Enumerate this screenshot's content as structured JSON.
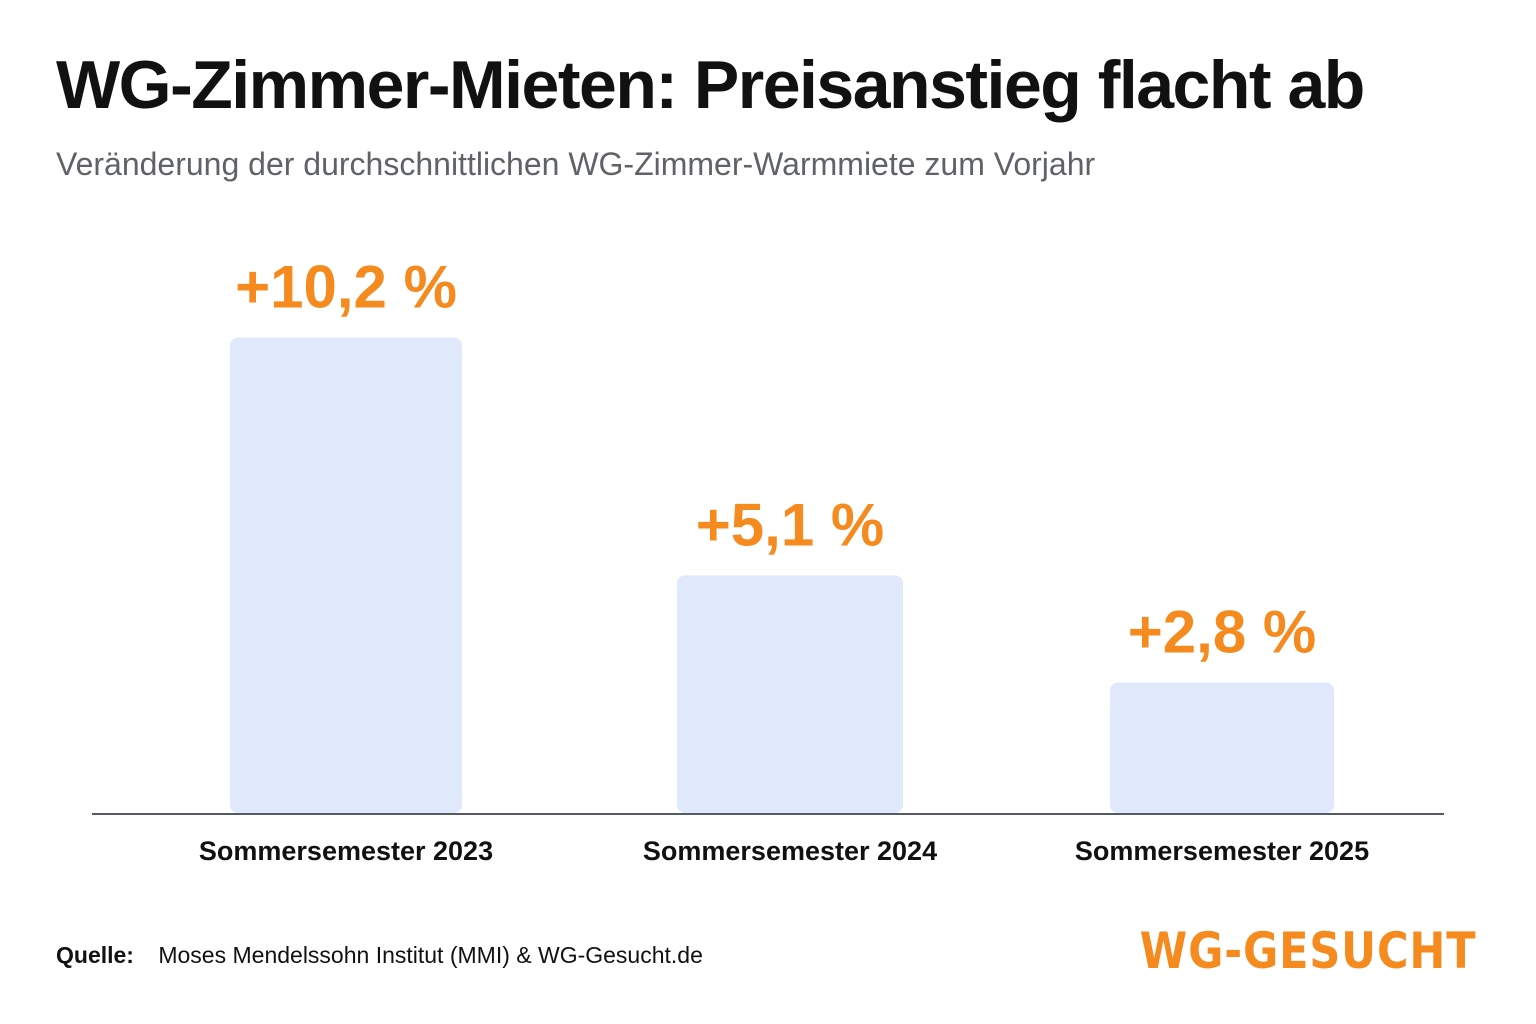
{
  "header": {
    "title": "WG-Zimmer-Mieten: Preisanstieg flacht ab",
    "subtitle": "Veränderung der durchschnittlichen WG-Zimmer-Warmmiete zum Vorjahr"
  },
  "chart_data": {
    "type": "bar",
    "title": "WG-Zimmer-Mieten: Preisanstieg flacht ab",
    "subtitle": "Veränderung der durchschnittlichen WG-Zimmer-Warmmiete zum Vorjahr",
    "categories": [
      "Sommersemester 2023",
      "Sommersemester 2024",
      "Sommersemester 2025"
    ],
    "values": [
      10.2,
      5.1,
      2.8
    ],
    "value_labels": [
      "+10,2 %",
      "+5,1 %",
      "+2,8 %"
    ],
    "unit": "%",
    "ylim": [
      0,
      11
    ],
    "grid": false,
    "legend": "none",
    "colors": {
      "bar": "#e0e9fb",
      "value_label": "#f58a1f",
      "baseline": "#555b66"
    }
  },
  "footer": {
    "source_label": "Quelle:",
    "source_text": "Moses Mendelssohn Institut (MMI) & WG-Gesucht.de",
    "logo_text": "WG-GESUCHT"
  }
}
